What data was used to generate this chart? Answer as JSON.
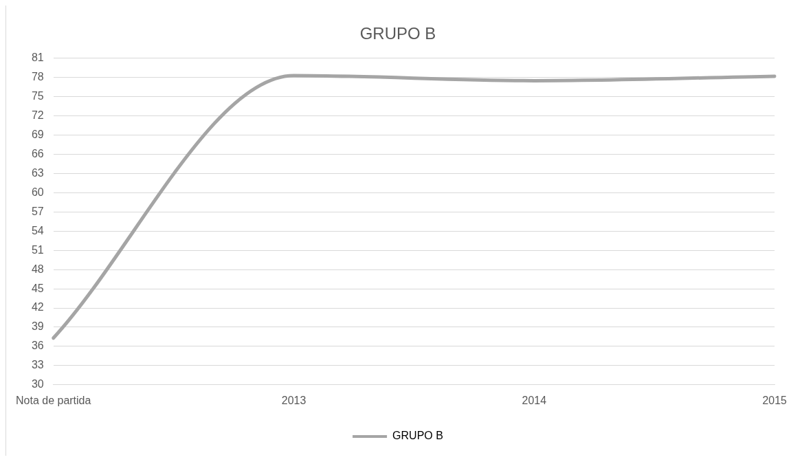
{
  "chart_data": {
    "type": "line",
    "title": "GRUPO B",
    "categories": [
      "Nota de partida",
      "2013",
      "2014",
      "2015"
    ],
    "series": [
      {
        "name": "GRUPO B",
        "color": "#a5a5a5",
        "values": [
          37.3,
          78.3,
          77.5,
          78.2
        ]
      }
    ],
    "ylim": [
      30,
      81
    ],
    "yticks": [
      30,
      33,
      36,
      39,
      42,
      45,
      48,
      51,
      54,
      57,
      60,
      63,
      66,
      69,
      72,
      75,
      78,
      81
    ],
    "grid": "y",
    "legend": "bottom",
    "marker": "none",
    "line_style": "solid"
  }
}
